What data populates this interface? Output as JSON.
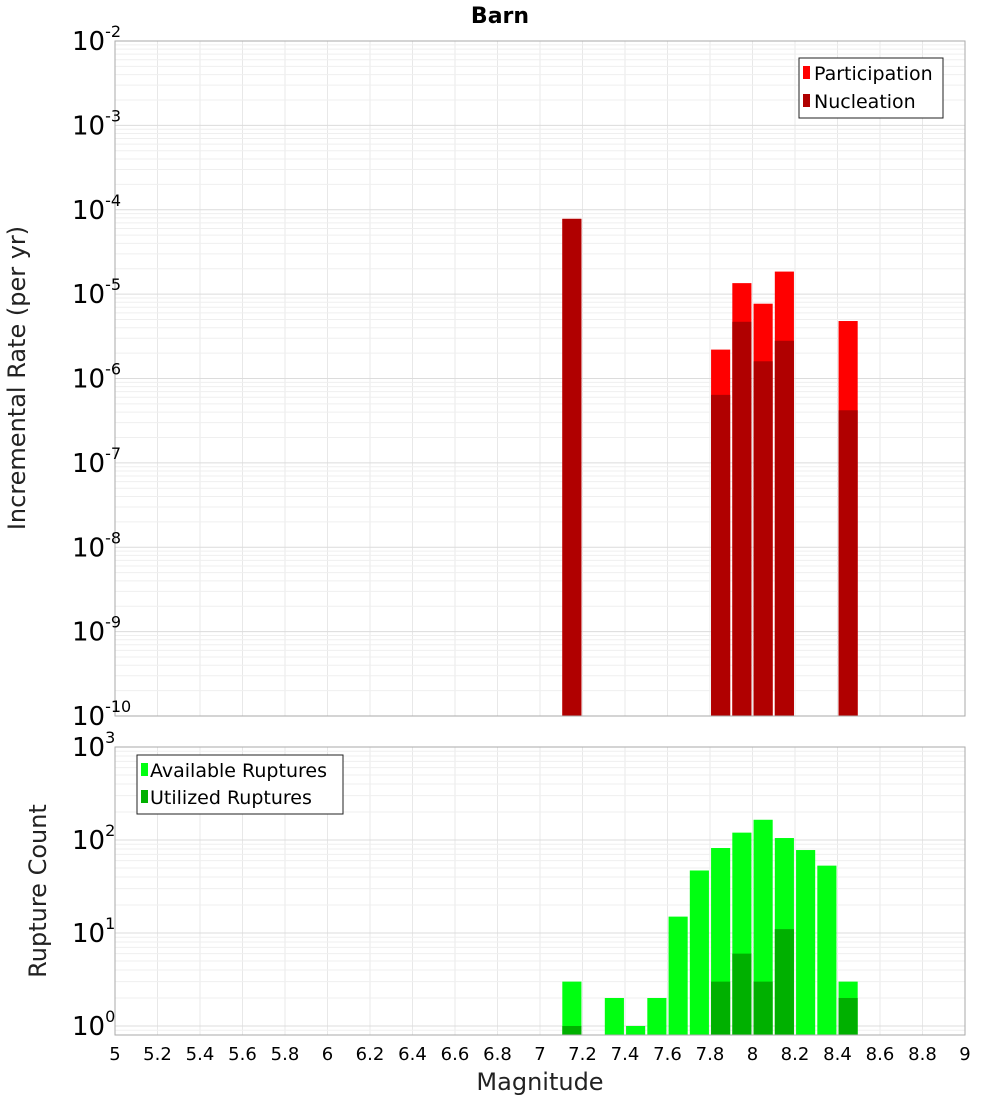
{
  "chart_data": [
    {
      "type": "bar",
      "title": "Barn",
      "ylabel": "Incremental Rate (per yr)",
      "yscale": "log",
      "ylim": [
        1e-10,
        0.01
      ],
      "xlim": [
        5,
        9
      ],
      "grid": true,
      "legend_position": "top-right",
      "ytick_labels": [
        {
          "base": "10",
          "exp": "-10",
          "value": 1e-10
        },
        {
          "base": "10",
          "exp": "-9",
          "value": 1e-09
        },
        {
          "base": "10",
          "exp": "-8",
          "value": 1e-08
        },
        {
          "base": "10",
          "exp": "-7",
          "value": 1e-07
        },
        {
          "base": "10",
          "exp": "-6",
          "value": 1e-06
        },
        {
          "base": "10",
          "exp": "-5",
          "value": 1e-05
        },
        {
          "base": "10",
          "exp": "-4",
          "value": 0.0001
        },
        {
          "base": "10",
          "exp": "-3",
          "value": 0.001
        },
        {
          "base": "10",
          "exp": "-2",
          "value": 0.01
        }
      ],
      "series": [
        {
          "name": "Participation",
          "color": "#ff0000",
          "x": [
            7.15,
            7.85,
            7.95,
            8.05,
            8.15,
            8.45
          ],
          "values": [
            7.8e-05,
            2.2e-06,
            1.35e-05,
            7.7e-06,
            1.85e-05,
            4.8e-06
          ]
        },
        {
          "name": "Nucleation",
          "color": "#b00000",
          "x": [
            7.15,
            7.85,
            7.95,
            8.05,
            8.15,
            8.45
          ],
          "values": [
            7.8e-05,
            6.4e-07,
            4.7e-06,
            1.6e-06,
            2.8e-06,
            4.2e-07
          ]
        }
      ]
    },
    {
      "type": "bar",
      "ylabel": "Rupture Count",
      "xlabel": "Magnitude",
      "yscale": "log",
      "ylim": [
        0.8,
        1000
      ],
      "xlim": [
        5,
        9
      ],
      "grid": true,
      "legend_position": "top-left",
      "ytick_labels": [
        {
          "base": "10",
          "exp": "0",
          "value": 1
        },
        {
          "base": "10",
          "exp": "1",
          "value": 10
        },
        {
          "base": "10",
          "exp": "2",
          "value": 100
        },
        {
          "base": "10",
          "exp": "3",
          "value": 1000
        }
      ],
      "xtick_labels": [
        "5",
        "5.2",
        "5.4",
        "5.6",
        "5.8",
        "6",
        "6.2",
        "6.4",
        "6.6",
        "6.8",
        "7",
        "7.2",
        "7.4",
        "7.6",
        "7.8",
        "8",
        "8.2",
        "8.4",
        "8.6",
        "8.8",
        "9"
      ],
      "series": [
        {
          "name": "Available Ruptures",
          "color": "#00ff11",
          "x": [
            7.15,
            7.35,
            7.45,
            7.55,
            7.65,
            7.75,
            7.85,
            7.95,
            8.05,
            8.15,
            8.25,
            8.35,
            8.45
          ],
          "values": [
            3,
            2,
            1,
            2,
            15,
            47,
            82,
            120,
            165,
            105,
            78,
            53,
            3
          ]
        },
        {
          "name": "Utilized Ruptures",
          "color": "#00b000",
          "x": [
            7.15,
            7.85,
            7.95,
            8.05,
            8.15,
            8.45
          ],
          "values": [
            1,
            3,
            6,
            3,
            11,
            2
          ]
        }
      ]
    }
  ]
}
